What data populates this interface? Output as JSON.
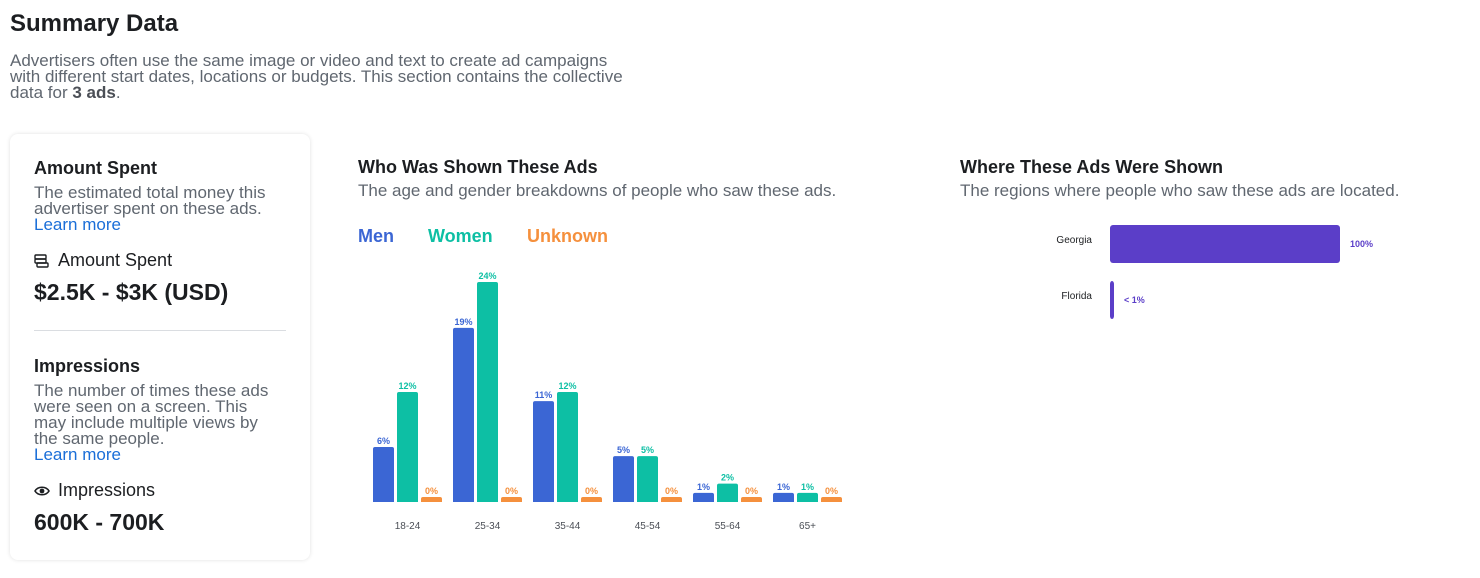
{
  "header": {
    "title": "Summary Data",
    "description_prefix": "Advertisers often use the same image or video and text to create ad campaigns with different start dates, locations or budgets. This section contains the collective data for ",
    "description_bold": "3 ads",
    "description_suffix": "."
  },
  "amount_spent": {
    "title": "Amount Spent",
    "description": "The estimated total money this advertiser spent on these ads. ",
    "learn_more": "Learn more",
    "metric_label": "Amount Spent",
    "metric_icon": "money-icon",
    "value": "$2.5K - $3K (USD)"
  },
  "impressions": {
    "title": "Impressions",
    "description": "The number of times these ads were seen on a screen. This may include multiple views by the same people.",
    "learn_more": "Learn more",
    "metric_label": "Impressions",
    "metric_icon": "eye-icon",
    "value": "600K - 700K"
  },
  "demographics": {
    "title": "Who Was Shown These Ads",
    "subtitle": "The age and gender breakdowns of people who saw these ads.",
    "legend": [
      {
        "name": "Men",
        "color": "#3b66d4"
      },
      {
        "name": "Women",
        "color": "#0dbfa4"
      },
      {
        "name": "Unknown",
        "color": "#f5903d"
      }
    ]
  },
  "regions": {
    "title": "Where These Ads Were Shown",
    "subtitle": "The regions where people who saw these ads are located."
  },
  "chart_data": [
    {
      "type": "bar",
      "categories": [
        "18-24",
        "25-34",
        "35-44",
        "45-54",
        "55-64",
        "65+"
      ],
      "series": [
        {
          "name": "Men",
          "color": "#3b66d4",
          "values": [
            6,
            19,
            11,
            5,
            1,
            1
          ],
          "labels": [
            "6%",
            "19%",
            "11%",
            "5%",
            "1%",
            "1%"
          ]
        },
        {
          "name": "Women",
          "color": "#0dbfa4",
          "values": [
            12,
            24,
            12,
            5,
            2,
            1
          ],
          "labels": [
            "12%",
            "24%",
            "12%",
            "5%",
            "2%",
            "1%"
          ]
        },
        {
          "name": "Unknown",
          "color": "#f5903d",
          "values": [
            0,
            0,
            0,
            0,
            0,
            0
          ],
          "labels": [
            "0%",
            "0%",
            "0%",
            "0%",
            "0%",
            "0%"
          ]
        }
      ],
      "ylim": [
        0,
        24
      ]
    },
    {
      "type": "bar",
      "orientation": "horizontal",
      "categories": [
        "Georgia",
        "Florida"
      ],
      "values": [
        100,
        0.5
      ],
      "labels": [
        "100%",
        "< 1%"
      ],
      "color": "#5b3ec8",
      "xlim": [
        0,
        100
      ]
    }
  ]
}
